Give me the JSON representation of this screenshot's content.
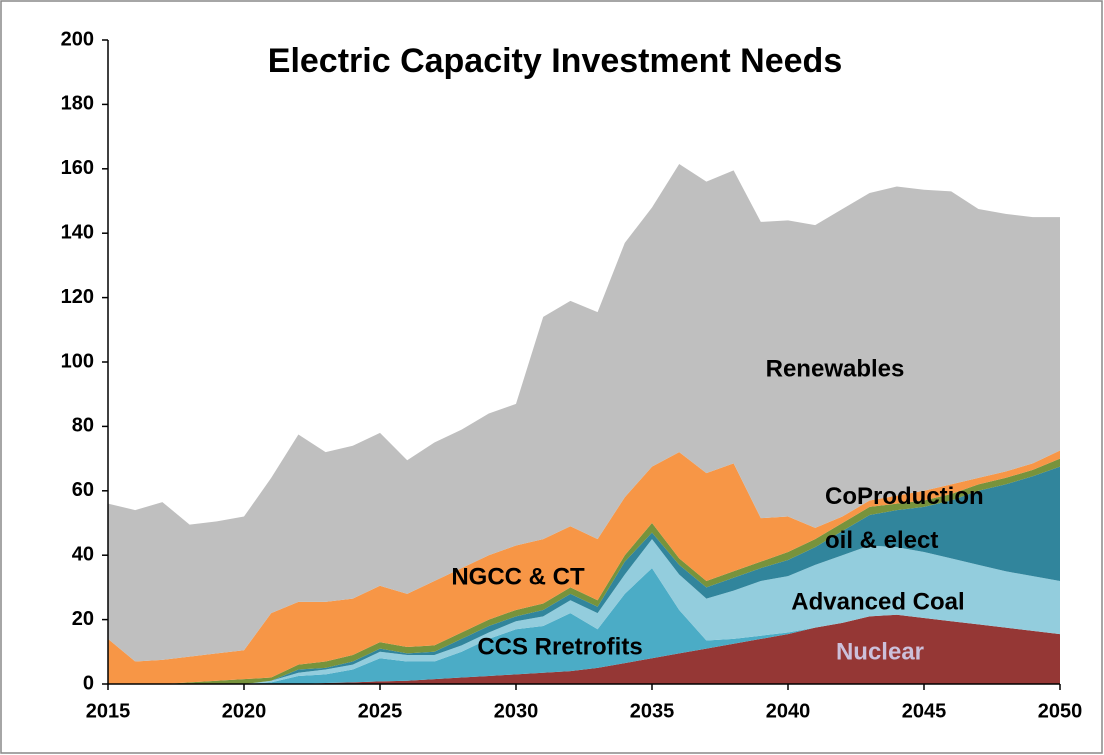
{
  "chart_data": {
    "type": "stacked_area",
    "title": "Electric Capacity Investment Needs",
    "x": [
      2015,
      2016,
      2017,
      2018,
      2019,
      2020,
      2021,
      2022,
      2023,
      2024,
      2025,
      2026,
      2027,
      2028,
      2029,
      2030,
      2031,
      2032,
      2033,
      2034,
      2035,
      2036,
      2037,
      2038,
      2039,
      2040,
      2041,
      2042,
      2043,
      2044,
      2045,
      2046,
      2047,
      2048,
      2049,
      2050
    ],
    "xlim": [
      2015,
      2050
    ],
    "xticks": [
      2015,
      2020,
      2025,
      2030,
      2035,
      2040,
      2045,
      2050
    ],
    "ylim": [
      0,
      200
    ],
    "yticks": [
      0,
      20,
      40,
      60,
      80,
      100,
      120,
      140,
      160,
      180,
      200
    ],
    "grid": false,
    "series": [
      {
        "name": "Nuclear",
        "color": "#953735",
        "values": [
          0,
          0,
          0,
          0,
          0,
          0,
          0,
          0,
          0.3,
          0.5,
          0.8,
          1,
          1.5,
          2,
          2.5,
          3,
          3.5,
          4,
          5,
          6.5,
          8,
          9.5,
          11,
          12.5,
          14,
          15.5,
          17.5,
          19,
          21,
          21.5,
          20.5,
          19.5,
          18.5,
          17.5,
          16.5,
          15.5
        ]
      },
      {
        "name": "CCS Rretrofits",
        "color": "#4bacc6",
        "values": [
          0,
          0,
          0,
          0,
          0,
          0,
          0.5,
          2.5,
          2.7,
          4,
          7.2,
          6,
          5.5,
          8,
          11.5,
          14,
          14.5,
          18,
          12,
          21.5,
          28,
          13.5,
          2.5,
          1.5,
          1,
          0.5,
          0,
          0,
          0,
          0,
          0,
          0,
          0,
          0,
          0,
          0
        ]
      },
      {
        "name": "Advanced Coal",
        "color": "#93cddd",
        "values": [
          0,
          0,
          0,
          0,
          0,
          0,
          0.5,
          1,
          1.5,
          1.5,
          2,
          2,
          2,
          2,
          2,
          2.5,
          3,
          4,
          5,
          6,
          9,
          11,
          13,
          15,
          17,
          17.5,
          19.5,
          21,
          22,
          21,
          20.5,
          19.5,
          18.5,
          17.5,
          17,
          16.5
        ]
      },
      {
        "name": "CoProduction oil & elect",
        "color": "#31859c",
        "values": [
          0,
          0,
          0,
          0,
          0,
          0,
          0,
          1,
          0.5,
          1,
          1,
          0.5,
          1,
          2,
          2,
          1.5,
          2,
          2,
          2,
          4,
          2,
          3,
          3.5,
          4,
          4,
          5,
          5.5,
          7.5,
          9.5,
          11.5,
          14,
          18,
          23,
          27,
          31,
          35.5
        ]
      },
      {
        "color": "#77933c",
        "values": [
          0,
          0,
          0,
          0.5,
          1,
          1.5,
          1,
          1.5,
          2,
          2,
          2,
          2,
          2,
          2,
          2,
          2,
          2,
          2,
          2,
          2,
          3,
          2,
          2,
          2,
          2,
          2.5,
          2.5,
          2.5,
          2.5,
          2,
          2,
          2,
          2,
          2,
          2,
          2.5
        ]
      },
      {
        "name": "NGCC & CT",
        "color": "#f79646",
        "values": [
          14,
          7,
          7.5,
          8,
          8.5,
          9,
          20,
          19.5,
          18.5,
          17.5,
          17.5,
          16.5,
          20,
          20,
          20,
          20,
          20,
          19,
          19,
          18,
          17.5,
          33,
          33.5,
          33.5,
          13.5,
          11,
          3.5,
          2,
          2,
          2.5,
          3,
          3,
          2,
          2,
          2,
          2.5
        ]
      },
      {
        "name": "Renewables",
        "color": "#bfbfbf",
        "values": [
          42,
          47,
          49,
          41,
          41,
          41.5,
          42,
          52,
          46.5,
          47.5,
          47.5,
          41.5,
          43,
          43,
          44,
          44,
          69,
          70,
          70.5,
          79,
          80.5,
          89.5,
          90.5,
          91,
          92,
          92,
          94,
          95.5,
          95.5,
          96,
          93.5,
          91,
          83.5,
          80,
          76.5,
          72.5
        ]
      }
    ]
  }
}
